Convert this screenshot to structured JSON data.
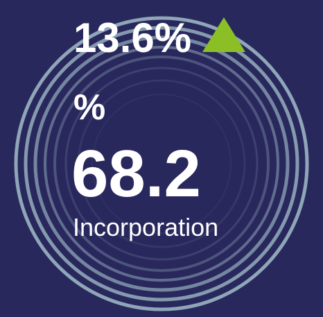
{
  "widget": {
    "change": "13.6%",
    "unit": "%",
    "value": "68.2",
    "label": "Incorporation"
  }
}
